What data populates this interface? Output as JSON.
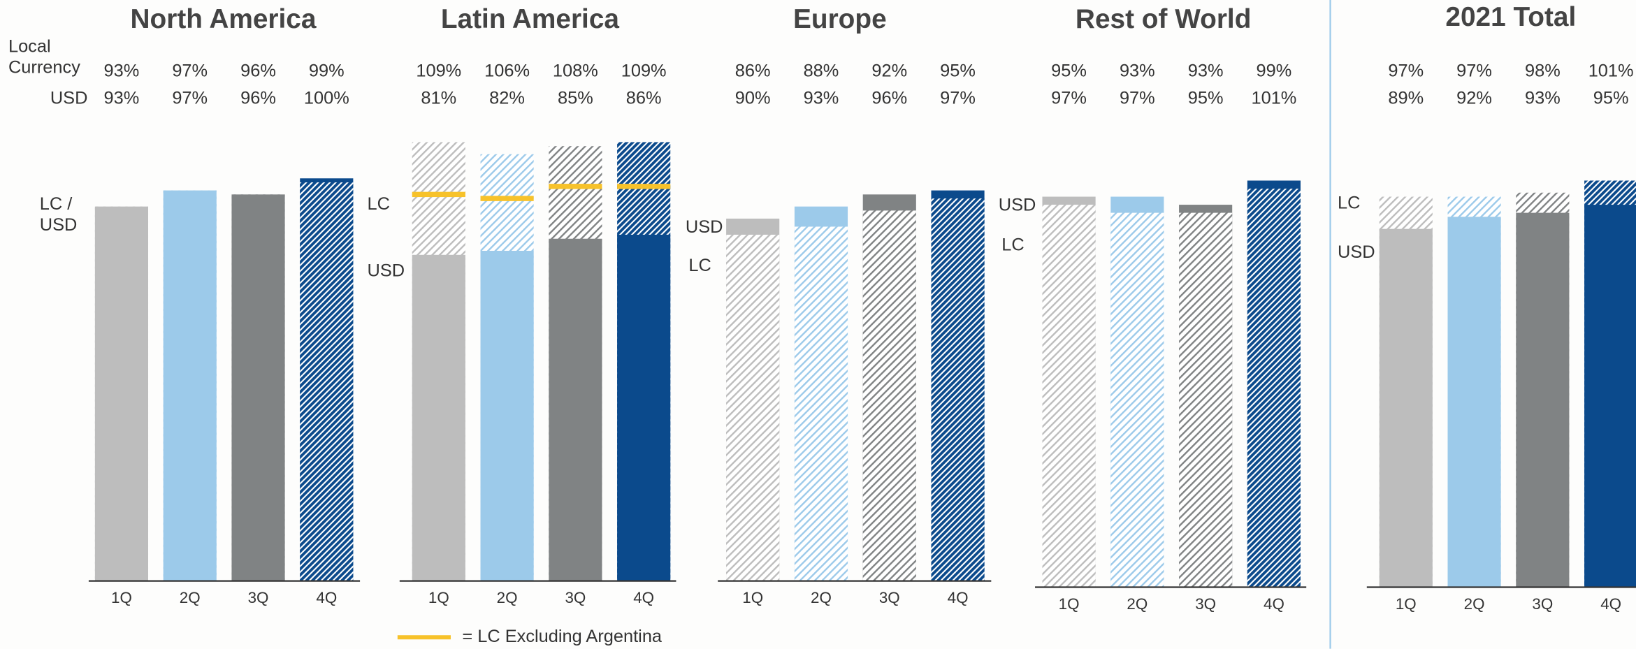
{
  "row_labels": {
    "lc": "Local Currency",
    "usd": "USD"
  },
  "chart_data": [
    {
      "type": "bar",
      "title": "North America",
      "categories": [
        "1Q",
        "2Q",
        "3Q",
        "4Q"
      ],
      "colors": [
        "#bdbdbd",
        "#9ccaea",
        "#808384",
        "#0b4a8c"
      ],
      "ylim": [
        0,
        110
      ],
      "annotations": [
        "LC / USD"
      ],
      "series": [
        {
          "name": "LC",
          "values": [
            93,
            97,
            96,
            99
          ],
          "value_labels": [
            "93%",
            "97%",
            "96%",
            "99%"
          ]
        },
        {
          "name": "USD",
          "values": [
            93,
            97,
            96,
            100
          ],
          "value_labels": [
            "93%",
            "97%",
            "96%",
            "100%"
          ]
        }
      ]
    },
    {
      "type": "bar",
      "title": "Latin America",
      "categories": [
        "1Q",
        "2Q",
        "3Q",
        "4Q"
      ],
      "colors": [
        "#bdbdbd",
        "#9ccaea",
        "#808384",
        "#0b4a8c"
      ],
      "ylim": [
        0,
        110
      ],
      "annotations": [
        "LC",
        "USD"
      ],
      "series": [
        {
          "name": "LC",
          "values": [
            109,
            106,
            108,
            109
          ],
          "value_labels": [
            "109%",
            "106%",
            "108%",
            "109%"
          ]
        },
        {
          "name": "USD",
          "values": [
            81,
            82,
            85,
            86
          ],
          "value_labels": [
            "81%",
            "82%",
            "85%",
            "86%"
          ]
        },
        {
          "name": "= LC Excluding Argentina",
          "color": "#f7c22a",
          "values": [
            96,
            95,
            98,
            98
          ]
        }
      ]
    },
    {
      "type": "bar",
      "title": "Europe",
      "categories": [
        "1Q",
        "2Q",
        "3Q",
        "4Q"
      ],
      "colors": [
        "#bdbdbd",
        "#9ccaea",
        "#808384",
        "#0b4a8c"
      ],
      "ylim": [
        0,
        110
      ],
      "annotations": [
        "USD",
        "LC"
      ],
      "series": [
        {
          "name": "LC",
          "values": [
            86,
            88,
            92,
            95
          ],
          "value_labels": [
            "86%",
            "88%",
            "92%",
            "95%"
          ]
        },
        {
          "name": "USD",
          "values": [
            90,
            93,
            96,
            97
          ],
          "value_labels": [
            "90%",
            "93%",
            "96%",
            "97%"
          ]
        }
      ]
    },
    {
      "type": "bar",
      "title": "Rest of World",
      "categories": [
        "1Q",
        "2Q",
        "3Q",
        "4Q"
      ],
      "colors": [
        "#bdbdbd",
        "#9ccaea",
        "#808384",
        "#0b4a8c"
      ],
      "ylim": [
        0,
        110
      ],
      "annotations": [
        "USD",
        "LC"
      ],
      "series": [
        {
          "name": "LC",
          "values": [
            95,
            93,
            93,
            99
          ],
          "value_labels": [
            "95%",
            "93%",
            "93%",
            "99%"
          ]
        },
        {
          "name": "USD",
          "values": [
            97,
            97,
            95,
            101
          ],
          "value_labels": [
            "97%",
            "97%",
            "95%",
            "101%"
          ]
        }
      ]
    },
    {
      "type": "bar",
      "title": "2021 Total",
      "categories": [
        "1Q",
        "2Q",
        "3Q",
        "4Q"
      ],
      "colors": [
        "#bdbdbd",
        "#9ccaea",
        "#808384",
        "#0b4a8c"
      ],
      "ylim": [
        0,
        110
      ],
      "annotations": [
        "LC",
        "USD"
      ],
      "series": [
        {
          "name": "LC",
          "values": [
            97,
            97,
            98,
            101
          ],
          "value_labels": [
            "97%",
            "97%",
            "98%",
            "101%"
          ]
        },
        {
          "name": "USD",
          "values": [
            89,
            92,
            93,
            95
          ],
          "value_labels": [
            "89%",
            "92%",
            "93%",
            "95%"
          ]
        }
      ]
    }
  ]
}
